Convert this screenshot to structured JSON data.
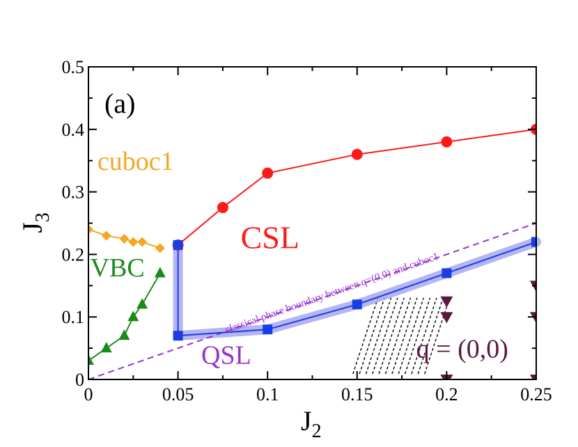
{
  "chart_data": {
    "type": "scatter",
    "panel_label": "(a)",
    "xlabel_main": "J",
    "xlabel_sub": "2",
    "ylabel_main": "J",
    "ylabel_sub": "3",
    "xlim": [
      0,
      0.25
    ],
    "ylim": [
      0,
      0.5
    ],
    "x_ticks": [
      0,
      0.05,
      0.1,
      0.15,
      0.2,
      0.25
    ],
    "x_tick_labels": [
      "0",
      "0.05",
      "0.1",
      "0.15",
      "0.2",
      "0.25"
    ],
    "y_ticks": [
      0,
      0.1,
      0.2,
      0.3,
      0.4,
      0.5
    ],
    "y_tick_labels": [
      "0",
      "0.1",
      "0.2",
      "0.3",
      "0.4",
      "0.5"
    ],
    "grid": false,
    "colors": {
      "cuboc1": "#f5a623",
      "csl": "#ff1a1a",
      "vbc": "#1a8a1a",
      "qsl": "#1a3ee6",
      "qsl_band": "#a8a8ee",
      "q00": "#5a1840",
      "classical": "#9933cc",
      "hatch": "#000000"
    },
    "series": [
      {
        "name": "cuboc1",
        "marker": "diamond",
        "x": [
          0,
          0.01,
          0.02,
          0.025,
          0.03,
          0.04
        ],
        "y": [
          0.24,
          0.23,
          0.225,
          0.22,
          0.22,
          0.21
        ]
      },
      {
        "name": "CSL",
        "marker": "circle",
        "x": [
          0.05,
          0.075,
          0.1,
          0.15,
          0.2,
          0.25
        ],
        "y": [
          0.215,
          0.275,
          0.33,
          0.36,
          0.38,
          0.4
        ]
      },
      {
        "name": "VBC",
        "marker": "triangle-up",
        "x": [
          0,
          0.01,
          0.02,
          0.025,
          0.03,
          0.04
        ],
        "y": [
          0.03,
          0.05,
          0.07,
          0.1,
          0.12,
          0.17
        ]
      },
      {
        "name": "QSL",
        "marker": "square",
        "x": [
          0.05,
          0.05,
          0.1,
          0.15,
          0.2,
          0.25
        ],
        "y": [
          0.215,
          0.07,
          0.08,
          0.12,
          0.17,
          0.22
        ]
      },
      {
        "name": "q=(0,0)",
        "marker": "triangle-down",
        "x": [
          0.2,
          0.2,
          0.2,
          0.25,
          0.25,
          0.25
        ],
        "y": [
          0.125,
          0.1,
          0.0,
          0.15,
          0.1,
          0.0
        ]
      }
    ],
    "classical_boundary": {
      "label": "classical phase boundary between q=(0,0) and cuboc1",
      "x": [
        0,
        0.25
      ],
      "y": [
        0,
        0.25
      ]
    },
    "annotations": [
      {
        "id": "cuboc1",
        "text": "cuboc1",
        "x": 0.005,
        "y": 0.335
      },
      {
        "id": "csl",
        "text": "CSL",
        "x": 0.085,
        "y": 0.21
      },
      {
        "id": "vbc",
        "text": "VBC",
        "x": 0.001,
        "y": 0.165
      },
      {
        "id": "qsl",
        "text": "QSL",
        "x": 0.063,
        "y": 0.025
      },
      {
        "id": "q00",
        "text": "q = (0,0)",
        "x": 0.183,
        "y": 0.035
      }
    ]
  }
}
